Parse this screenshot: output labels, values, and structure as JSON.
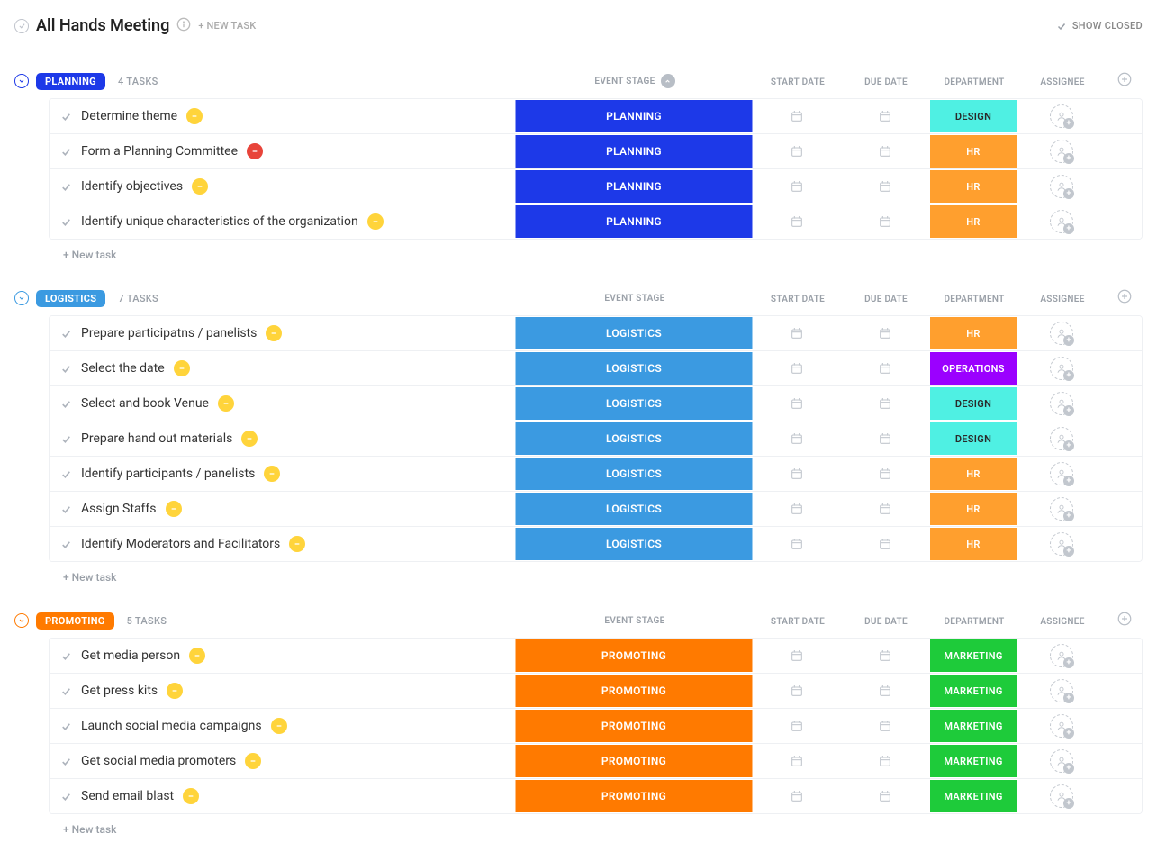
{
  "header": {
    "title": "All Hands Meeting",
    "new_task_label": "+ NEW TASK",
    "show_closed_label": "SHOW CLOSED"
  },
  "columns": {
    "event_stage": "EVENT STAGE",
    "start_date": "START DATE",
    "due_date": "DUE DATE",
    "department": "DEPARTMENT",
    "assignee": "ASSIGNEE"
  },
  "new_task_row_label": "+ New task",
  "priority_colors": {
    "normal": "#ffd43b",
    "high": "#e8443a"
  },
  "department_styles": {
    "DESIGN": {
      "bg": "#4ff0e3",
      "text": "#2a2a2a"
    },
    "HR": {
      "bg": "#ff9f2e",
      "text": "#ffffff"
    },
    "OPERATIONS": {
      "bg": "#9b00ff",
      "text": "#ffffff"
    },
    "MARKETING": {
      "bg": "#1ecb3a",
      "text": "#ffffff"
    }
  },
  "groups": [
    {
      "key": "planning",
      "name": "PLANNING",
      "count_label": "4 TASKS",
      "color": "#1d39e8",
      "collapse_color": "#1d39e8",
      "stage_bg": "#1d39e8",
      "tasks": [
        {
          "name": "Determine theme",
          "priority": "normal",
          "stage": "PLANNING",
          "department": "DESIGN"
        },
        {
          "name": "Form a Planning Committee",
          "priority": "high",
          "stage": "PLANNING",
          "department": "HR"
        },
        {
          "name": "Identify objectives",
          "priority": "normal",
          "stage": "PLANNING",
          "department": "HR"
        },
        {
          "name": "Identify unique characteristics of the organization",
          "priority": "normal",
          "stage": "PLANNING",
          "department": "HR"
        }
      ]
    },
    {
      "key": "logistics",
      "name": "LOGISTICS",
      "count_label": "7 TASKS",
      "color": "#3b9ae1",
      "collapse_color": "#3b9ae1",
      "stage_bg": "#3b9ae1",
      "tasks": [
        {
          "name": "Prepare participatns / panelists",
          "priority": "normal",
          "stage": "LOGISTICS",
          "department": "HR"
        },
        {
          "name": "Select the date",
          "priority": "normal",
          "stage": "LOGISTICS",
          "department": "OPERATIONS"
        },
        {
          "name": "Select and book Venue",
          "priority": "normal",
          "stage": "LOGISTICS",
          "department": "DESIGN"
        },
        {
          "name": "Prepare hand out materials",
          "priority": "normal",
          "stage": "LOGISTICS",
          "department": "DESIGN"
        },
        {
          "name": "Identify participants / panelists",
          "priority": "normal",
          "stage": "LOGISTICS",
          "department": "HR"
        },
        {
          "name": "Assign Staffs",
          "priority": "normal",
          "stage": "LOGISTICS",
          "department": "HR"
        },
        {
          "name": "Identify Moderators and Facilitators",
          "priority": "normal",
          "stage": "LOGISTICS",
          "department": "HR"
        }
      ]
    },
    {
      "key": "promoting",
      "name": "PROMOTING",
      "count_label": "5 TASKS",
      "color": "#ff7a00",
      "collapse_color": "#ff7a00",
      "stage_bg": "#ff7a00",
      "tasks": [
        {
          "name": "Get media person",
          "priority": "normal",
          "stage": "PROMOTING",
          "department": "MARKETING"
        },
        {
          "name": "Get press kits",
          "priority": "normal",
          "stage": "PROMOTING",
          "department": "MARKETING"
        },
        {
          "name": "Launch social media campaigns",
          "priority": "normal",
          "stage": "PROMOTING",
          "department": "MARKETING"
        },
        {
          "name": "Get social media promoters",
          "priority": "normal",
          "stage": "PROMOTING",
          "department": "MARKETING"
        },
        {
          "name": "Send email blast",
          "priority": "normal",
          "stage": "PROMOTING",
          "department": "MARKETING"
        }
      ]
    }
  ]
}
